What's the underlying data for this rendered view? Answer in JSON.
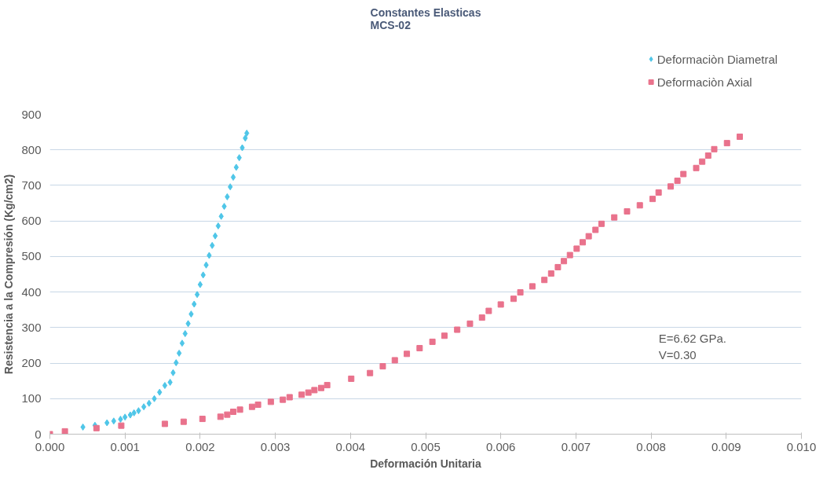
{
  "chart_data": {
    "type": "scatter",
    "title": "Constantes Elasticas\nMCS-02",
    "xlabel": "Deformación Unitaria",
    "ylabel": "Resistencia a la Compresión (Kg/cm2)",
    "xlim": [
      0,
      0.01
    ],
    "ylim": [
      0,
      900
    ],
    "xticks": [
      {
        "value": 0,
        "label": "0.000"
      },
      {
        "value": 0.001,
        "label": "0.001"
      },
      {
        "value": 0.002,
        "label": "0.002"
      },
      {
        "value": 0.003,
        "label": "0.003"
      },
      {
        "value": 0.004,
        "label": "0.004"
      },
      {
        "value": 0.005,
        "label": "0.005"
      },
      {
        "value": 0.006,
        "label": "0.006"
      },
      {
        "value": 0.007,
        "label": "0.007"
      },
      {
        "value": 0.008,
        "label": "0.008"
      },
      {
        "value": 0.009,
        "label": "0.009"
      },
      {
        "value": 0.01,
        "label": "0.010"
      }
    ],
    "yticks": [
      0,
      100,
      200,
      300,
      400,
      500,
      600,
      700,
      800,
      900
    ],
    "grid": "y",
    "legend": "top right",
    "annotations": [
      "E=6.62 GPa.",
      "V=0.30"
    ],
    "series": [
      {
        "name": "Deformaciòn Diametral",
        "color": "#4fc6e8",
        "marker": "diamond",
        "x": [
          0.00044,
          0.0006,
          0.00076,
          0.00085,
          0.00094,
          0.001,
          0.00107,
          0.00112,
          0.00118,
          0.00125,
          0.00132,
          0.00139,
          0.00146,
          0.00153,
          0.0016,
          0.00164,
          0.00168,
          0.00172,
          0.00176,
          0.0018,
          0.00184,
          0.00188,
          0.00192,
          0.00196,
          0.002,
          0.00204,
          0.00208,
          0.00212,
          0.00216,
          0.0022,
          0.00224,
          0.00228,
          0.00232,
          0.00236,
          0.0024,
          0.00244,
          0.00248,
          0.00252,
          0.00256,
          0.0026,
          0.00262
        ],
        "values": [
          20,
          25,
          32,
          37,
          42,
          48,
          54,
          60,
          66,
          77,
          87,
          100,
          118,
          137,
          146,
          173,
          201,
          228,
          256,
          283,
          311,
          338,
          366,
          393,
          421,
          448,
          476,
          503,
          531,
          558,
          586,
          613,
          641,
          668,
          696,
          723,
          751,
          778,
          806,
          833,
          847
        ]
      },
      {
        "name": "Deformaciòn Axial",
        "color": "#e9728c",
        "marker": "square",
        "x": [
          0,
          0.0002,
          0.00062,
          0.00095,
          0.00153,
          0.00178,
          0.00203,
          0.00227,
          0.00236,
          0.00244,
          0.00253,
          0.00269,
          0.00277,
          0.00294,
          0.0031,
          0.00319,
          0.00335,
          0.00344,
          0.00352,
          0.00361,
          0.00369,
          0.00401,
          0.00426,
          0.00443,
          0.00459,
          0.00475,
          0.00492,
          0.00509,
          0.00525,
          0.00542,
          0.00559,
          0.00575,
          0.00584,
          0.006,
          0.00617,
          0.00626,
          0.00642,
          0.00658,
          0.00667,
          0.00676,
          0.00684,
          0.00692,
          0.00701,
          0.00709,
          0.00717,
          0.00726,
          0.00734,
          0.00751,
          0.00768,
          0.00785,
          0.00802,
          0.0081,
          0.00826,
          0.00835,
          0.00843,
          0.0086,
          0.00868,
          0.00876,
          0.00884,
          0.00901,
          0.00918
        ],
        "values": [
          0,
          8,
          17,
          24,
          29,
          35,
          43,
          49,
          55,
          63,
          69,
          77,
          83,
          91,
          97,
          104,
          111,
          117,
          124,
          130,
          138,
          156,
          172,
          191,
          208,
          226,
          242,
          260,
          277,
          294,
          311,
          328,
          347,
          365,
          381,
          399,
          416,
          434,
          452,
          470,
          487,
          504,
          522,
          540,
          557,
          575,
          592,
          610,
          627,
          644,
          662,
          680,
          697,
          713,
          732,
          749,
          767,
          784,
          802,
          819,
          837
        ]
      }
    ]
  }
}
